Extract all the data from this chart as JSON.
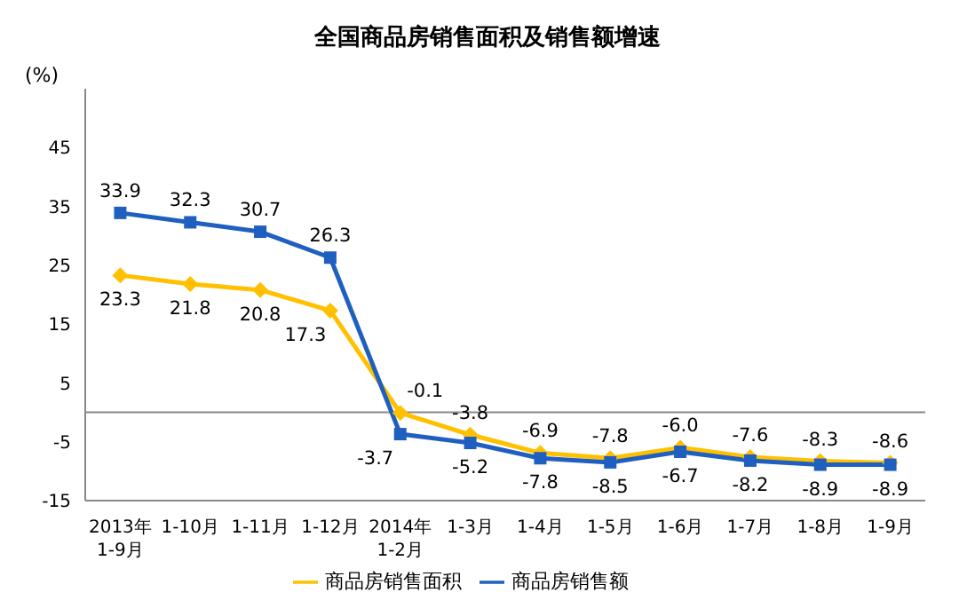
{
  "chart_data": {
    "type": "line",
    "title": "全国商品房销售面积及销售额增速",
    "ylabel": "(%)",
    "categories": [
      "2013年\n1-9月",
      "1-10月",
      "1-11月",
      "1-12月",
      "2014年\n1-2月",
      "1-3月",
      "1-4月",
      "1-5月",
      "1-6月",
      "1-7月",
      "1-8月",
      "1-9月"
    ],
    "series": [
      {
        "name": "商品房销售面积",
        "color": "#ffc000",
        "marker": "diamond",
        "values": [
          23.3,
          21.8,
          20.8,
          17.3,
          -0.1,
          -3.8,
          -6.9,
          -7.8,
          -6.0,
          -7.6,
          -8.3,
          -8.6
        ],
        "value_labels": [
          "23.3",
          "21.8",
          "20.8",
          "17.3",
          "-0.1",
          "-3.8",
          "-6.9",
          "-7.8",
          "-6.0",
          "-7.6",
          "-8.3",
          "-8.6"
        ]
      },
      {
        "name": "商品房销售额",
        "color": "#1f5fbf",
        "marker": "square",
        "values": [
          33.9,
          32.3,
          30.7,
          26.3,
          -3.7,
          -5.2,
          -7.8,
          -8.5,
          -6.7,
          -8.2,
          -8.9,
          -8.9
        ],
        "value_labels": [
          "33.9",
          "32.3",
          "30.7",
          "26.3",
          "-3.7",
          "-5.2",
          "-7.8",
          "-8.5",
          "-6.7",
          "-8.2",
          "-8.9",
          "-8.9"
        ]
      }
    ],
    "ylim": [
      -15,
      55
    ],
    "yticks": [
      -15,
      -5,
      5,
      15,
      25,
      35,
      45
    ],
    "grid": false,
    "legend": "bottom"
  }
}
